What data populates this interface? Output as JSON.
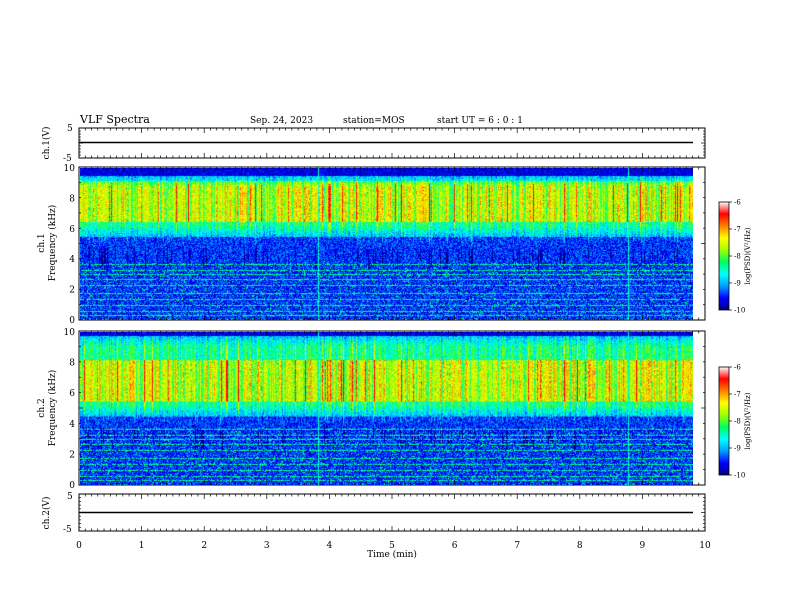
{
  "header": {
    "title": "VLF Spectra",
    "date": "Sep. 24, 2023",
    "station": "station=MOS",
    "start_ut": "start UT =   6 : 0  : 1"
  },
  "chart_data": {
    "type": "heatmap",
    "xlabel": "Time (min)",
    "xlim": [
      0,
      10
    ],
    "xticks": [
      "0",
      "1",
      "2",
      "3",
      "4",
      "5",
      "6",
      "7",
      "8",
      "9",
      "10"
    ],
    "panels": [
      {
        "id": "ch1-waveform",
        "ylabel": "ch.1(V)",
        "ylim": [
          -5,
          5
        ],
        "yticks": [
          "5",
          "-5"
        ],
        "trace_level": 0
      },
      {
        "id": "ch1-spectrogram",
        "ylabel_line1": "ch.1",
        "ylabel_line2": "Frequency (kHz)",
        "ylim": [
          0,
          10
        ],
        "yticks": [
          "0",
          "2",
          "4",
          "6",
          "8",
          "10"
        ],
        "band_khz": [
          5.5,
          9.5
        ],
        "peak_band_khz": [
          6.5,
          9.2
        ],
        "background_log_psd": -9.6
      },
      {
        "id": "ch2-spectrogram",
        "ylabel_line1": "ch.2",
        "ylabel_line2": "Frequency (kHz)",
        "ylim": [
          0,
          10
        ],
        "yticks": [
          "0",
          "2",
          "4",
          "6",
          "8",
          "10"
        ],
        "band_khz": [
          4.5,
          9.8
        ],
        "peak_band_khz": [
          5.5,
          8.2
        ],
        "background_log_psd": -9.5
      },
      {
        "id": "ch2-waveform",
        "ylabel": "ch.2(V)",
        "ylim": [
          -5,
          5
        ],
        "yticks": [
          "5",
          "-5"
        ],
        "trace_level": 0
      }
    ],
    "colorbar": {
      "label": "log(PSD)(V²/Hz)",
      "range": [
        -10,
        -6
      ],
      "ticks": [
        "-6",
        "-7",
        "-8",
        "-9",
        "-10"
      ],
      "colors": [
        "#000080",
        "#0000ff",
        "#00a0ff",
        "#00ffff",
        "#00ff60",
        "#a0ff00",
        "#ffff00",
        "#ff8000",
        "#ff0000",
        "#ffffff"
      ]
    },
    "line_tones_khz": [
      0.3,
      0.6,
      1.0,
      1.4,
      1.8,
      2.3,
      2.7,
      3.0,
      3.3,
      3.7
    ],
    "spike_times_min": [
      3.8,
      8.75
    ]
  }
}
